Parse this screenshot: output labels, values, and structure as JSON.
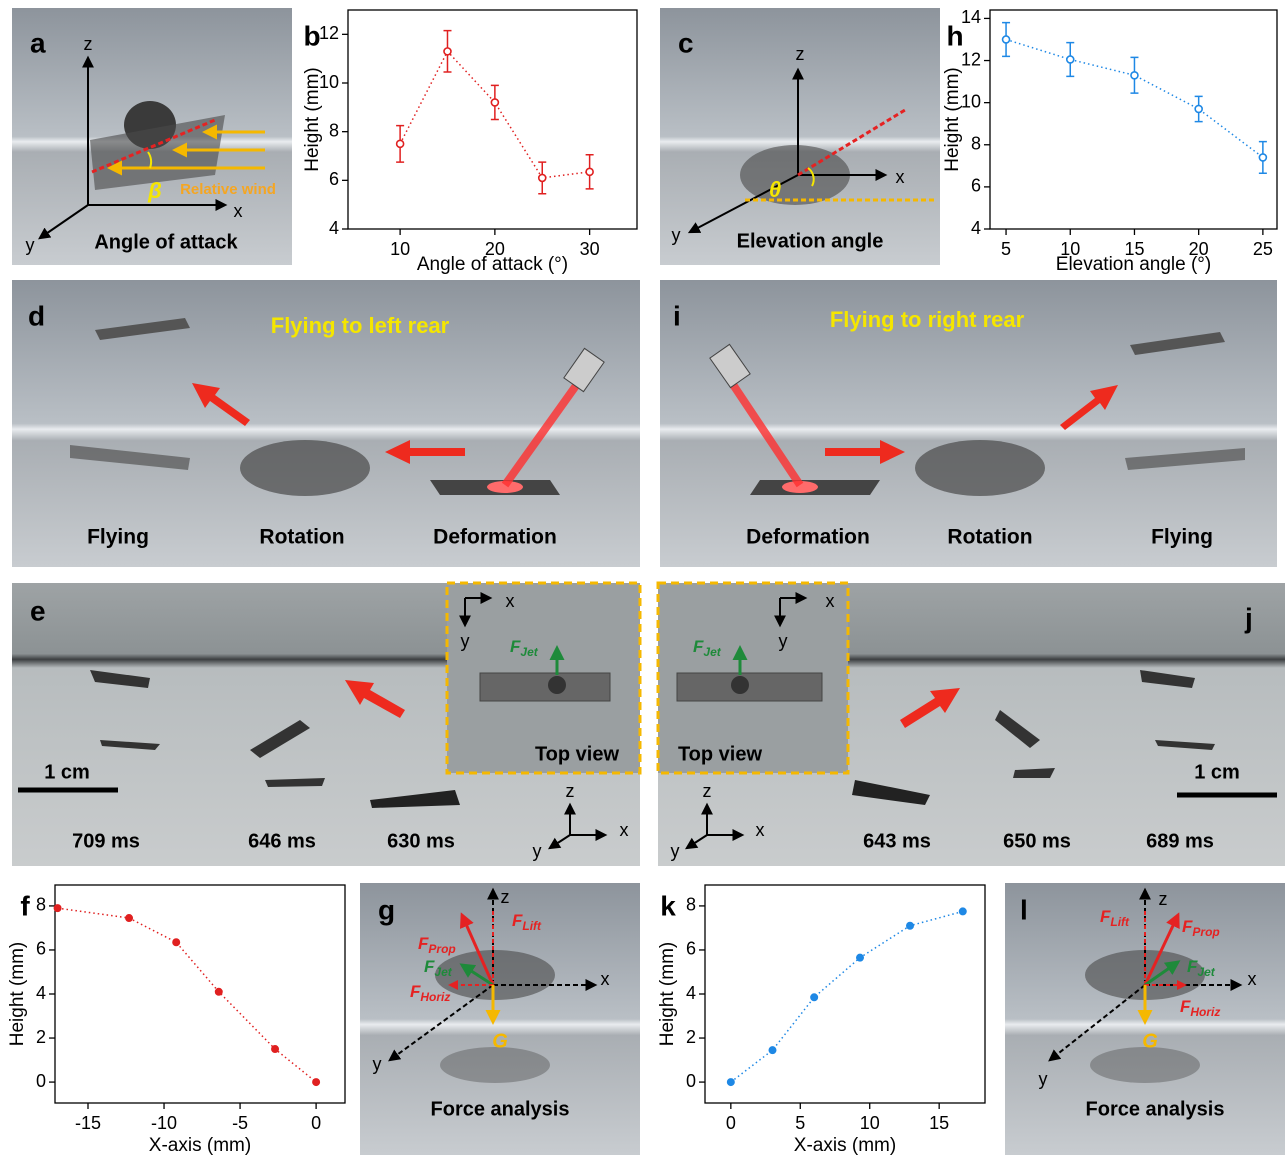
{
  "chart_data": [
    {
      "type": "line",
      "label": "b",
      "xlabel": "Angle of attack (°)",
      "ylabel": "Height (mm)",
      "color": "#e02020",
      "marker": "open",
      "x": [
        10,
        15,
        20,
        25,
        30
      ],
      "values": [
        7.5,
        11.3,
        9.2,
        6.1,
        6.35
      ],
      "errors": [
        0.75,
        0.85,
        0.7,
        0.65,
        0.7
      ],
      "xlim": [
        4.5,
        35
      ],
      "ylim": [
        4,
        13
      ],
      "xticks": [
        10,
        20,
        30
      ],
      "yticks": [
        4,
        6,
        8,
        10,
        12
      ]
    },
    {
      "type": "line",
      "label": "h",
      "xlabel": "Elevation angle (°)",
      "ylabel": "Height (mm)",
      "color": "#1e88e5",
      "marker": "open",
      "x": [
        5,
        10,
        15,
        20,
        25
      ],
      "values": [
        13,
        12.05,
        11.3,
        9.7,
        7.4
      ],
      "errors": [
        0.8,
        0.8,
        0.85,
        0.6,
        0.75
      ],
      "xlim": [
        3.75,
        26.1
      ],
      "ylim": [
        4,
        14.4
      ],
      "xticks": [
        5,
        10,
        15,
        20,
        25
      ],
      "yticks": [
        4,
        6,
        8,
        10,
        12,
        14
      ]
    },
    {
      "type": "line",
      "label": "f",
      "xlabel": "X-axis (mm)",
      "ylabel": "Height (mm)",
      "color": "#e02020",
      "marker": "filled",
      "x": [
        -17,
        -12.3,
        -9.2,
        -6.4,
        -2.7,
        0
      ],
      "values": [
        7.9,
        7.45,
        6.35,
        4.1,
        1.5,
        0
      ],
      "xlim": [
        -17.17,
        1.9
      ],
      "ylim": [
        -0.95,
        8.95
      ],
      "xticks": [
        -15,
        -10,
        -5,
        0
      ],
      "yticks": [
        0,
        2,
        4,
        6,
        8
      ]
    },
    {
      "type": "line",
      "label": "k",
      "xlabel": "X-axis (mm)",
      "ylabel": "Height (mm)",
      "color": "#1e88e5",
      "marker": "filled",
      "x": [
        0,
        3,
        6,
        9.3,
        12.9,
        16.7
      ],
      "values": [
        0,
        1.45,
        3.85,
        5.65,
        7.1,
        7.75
      ],
      "xlim": [
        -1.86,
        18.3
      ],
      "ylim": [
        -0.95,
        8.95
      ],
      "xticks": [
        0,
        5,
        10,
        15
      ],
      "yticks": [
        0,
        2,
        4,
        6,
        8
      ]
    }
  ],
  "photos": {
    "a": {
      "label": "a",
      "axes": [
        "z",
        "x",
        "y"
      ],
      "angle": "β",
      "wind": "Relative wind",
      "caption": "Angle of attack"
    },
    "c": {
      "label": "c",
      "axes": [
        "z",
        "x",
        "y"
      ],
      "angle": "θ",
      "caption": "Elevation angle"
    },
    "d": {
      "label": "d",
      "title": "Flying to left rear",
      "stages": [
        "Flying",
        "Rotation",
        "Deformation"
      ]
    },
    "i": {
      "label": "i",
      "title": "Flying to right rear",
      "stages": [
        "Deformation",
        "Rotation",
        "Flying"
      ]
    },
    "e": {
      "label": "e",
      "inset_axes": [
        "x",
        "y"
      ],
      "force": {
        "symbol": "F",
        "sub": "Jet"
      },
      "inset_caption": "Top view",
      "scale": "1 cm",
      "times": [
        "709 ms",
        "646 ms",
        "630 ms"
      ],
      "axes": [
        "z",
        "x",
        "y"
      ]
    },
    "j": {
      "label": "j",
      "inset_axes": [
        "x",
        "y"
      ],
      "force": {
        "symbol": "F",
        "sub": "Jet"
      },
      "inset_caption": "Top view",
      "scale": "1 cm",
      "times": [
        "643 ms",
        "650 ms",
        "689 ms"
      ],
      "axes": [
        "z",
        "x",
        "y"
      ]
    },
    "g": {
      "label": "g",
      "axes": [
        "z",
        "x",
        "y"
      ],
      "forces": [
        {
          "symbol": "F",
          "sub": "Prop"
        },
        {
          "symbol": "F",
          "sub": "Lift"
        },
        {
          "symbol": "F",
          "sub": "Jet"
        },
        {
          "symbol": "F",
          "sub": "Horiz"
        }
      ],
      "gravity": "G",
      "caption": "Force analysis"
    },
    "l": {
      "label": "l",
      "axes": [
        "z",
        "x",
        "y"
      ],
      "forces": [
        {
          "symbol": "F",
          "sub": "Lift"
        },
        {
          "symbol": "F",
          "sub": "Prop"
        },
        {
          "symbol": "F",
          "sub": "Jet"
        },
        {
          "symbol": "F",
          "sub": "Horiz"
        }
      ],
      "gravity": "G",
      "caption": "Force analysis"
    }
  }
}
